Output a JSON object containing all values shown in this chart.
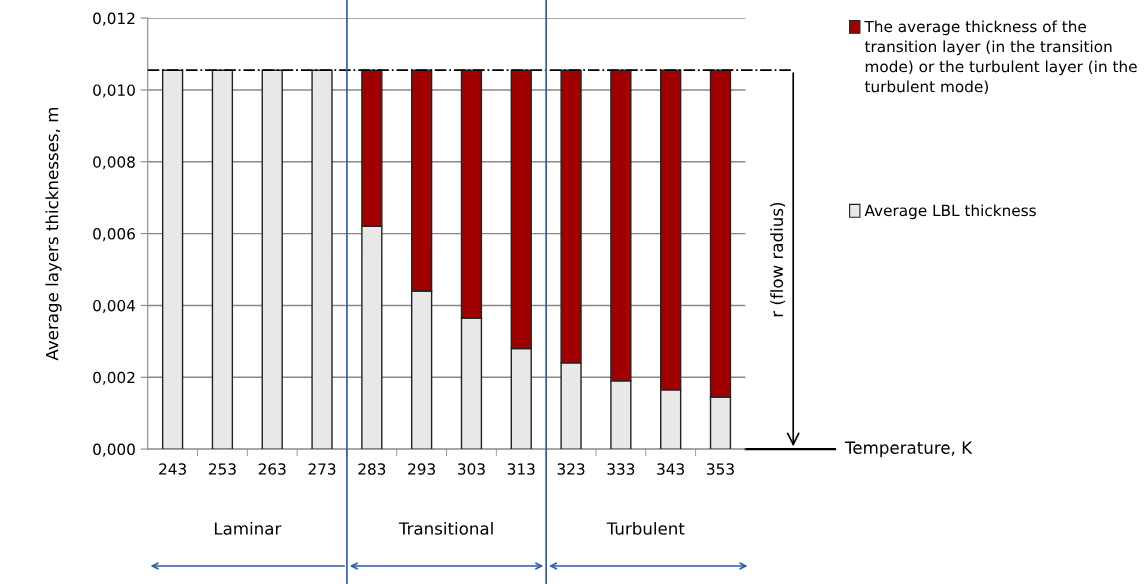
{
  "chart_data": {
    "type": "bar",
    "stacked": true,
    "categories": [
      "243",
      "253",
      "263",
      "273",
      "283",
      "293",
      "303",
      "313",
      "323",
      "333",
      "343",
      "353"
    ],
    "series": [
      {
        "name": "Average LBL thickness",
        "color": "#e8e8e8",
        "values": [
          0.01055,
          0.01055,
          0.01055,
          0.01055,
          0.0062,
          0.0044,
          0.00365,
          0.0028,
          0.0024,
          0.0019,
          0.00165,
          0.00145
        ]
      },
      {
        "name": "The average thickness of the transition layer (in the transition mode) or the turbulent layer (in the turbulent mode)",
        "color": "#a00000",
        "values": [
          null,
          null,
          null,
          null,
          0.00435,
          0.00615,
          0.0069,
          0.00775,
          0.00815,
          0.00865,
          0.0089,
          0.0091
        ]
      }
    ],
    "ylabel": "Average layers thicknesses, m",
    "ylim": [
      0,
      0.012
    ],
    "yticks": [
      {
        "value": 0,
        "label": "0,000"
      },
      {
        "value": 0.002,
        "label": "0,002"
      },
      {
        "value": 0.004,
        "label": "0,004"
      },
      {
        "value": 0.006,
        "label": "0,006"
      },
      {
        "value": 0.008,
        "label": "0,008"
      },
      {
        "value": 0.01,
        "label": "0,010"
      },
      {
        "value": 0.012,
        "label": "0,012"
      }
    ],
    "grid": "y",
    "legend": "right",
    "ref_lines": [
      {
        "axis": "y",
        "value": 0.01055,
        "color": "#000000",
        "line_style": "dashdot"
      }
    ],
    "annotations": [
      "r (flow radius)",
      "Laminar",
      "Transitional",
      "Turbulent",
      "Temperature, K"
    ]
  }
}
